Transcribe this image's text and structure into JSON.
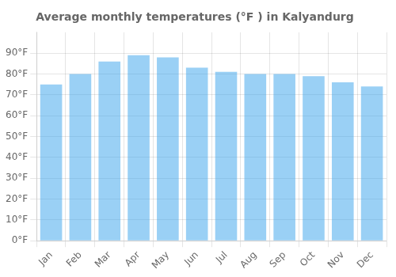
{
  "chart_data": {
    "type": "bar",
    "title": "Average monthly temperatures (°F ) in Kalyandurg",
    "categories": [
      "Jan",
      "Feb",
      "Mar",
      "Apr",
      "May",
      "Jun",
      "Jul",
      "Aug",
      "Sep",
      "Oct",
      "Nov",
      "Dec"
    ],
    "values": [
      75,
      80,
      86,
      89,
      88,
      83,
      81,
      80,
      80,
      79,
      76,
      74
    ],
    "ylim": [
      0,
      100
    ],
    "yticks": [
      {
        "value": 0,
        "label": "0°F"
      },
      {
        "value": 10,
        "label": "10°F"
      },
      {
        "value": 20,
        "label": "20°F"
      },
      {
        "value": 30,
        "label": "30°F"
      },
      {
        "value": 40,
        "label": "40°F"
      },
      {
        "value": 50,
        "label": "50°F"
      },
      {
        "value": 60,
        "label": "60°F"
      },
      {
        "value": 70,
        "label": "70°F"
      },
      {
        "value": 80,
        "label": "80°F"
      },
      {
        "value": 90,
        "label": "90°F"
      }
    ],
    "grid": true
  }
}
